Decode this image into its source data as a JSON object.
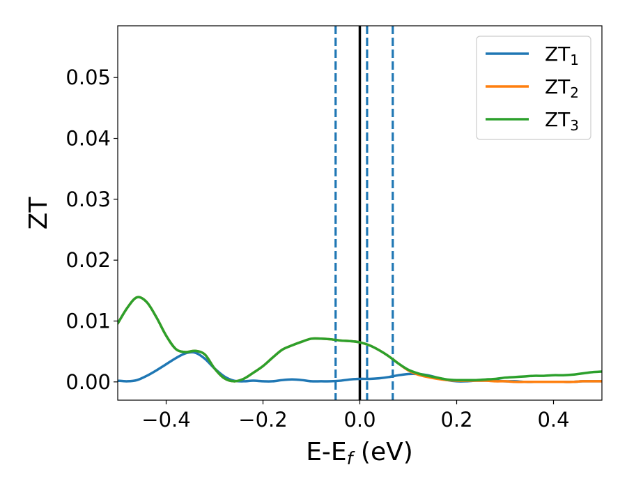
{
  "chart_data": {
    "type": "line",
    "xlabel_main": "E-E",
    "xlabel_sub": "f",
    "xlabel_unit": " (eV)",
    "ylabel": "ZT",
    "xlim": [
      -0.5,
      0.5
    ],
    "ylim": [
      -0.003,
      0.0585
    ],
    "x_ticks": [
      -0.4,
      -0.2,
      0.0,
      0.2,
      0.4
    ],
    "x_tick_labels": [
      "−0.4",
      "−0.2",
      "0.0",
      "0.2",
      "0.4"
    ],
    "y_ticks": [
      0.0,
      0.01,
      0.02,
      0.03,
      0.04,
      0.05
    ],
    "y_tick_labels": [
      "0.00",
      "0.01",
      "0.02",
      "0.03",
      "0.04",
      "0.05"
    ],
    "grid": false,
    "legend_position": "top-right",
    "vertical_lines": [
      {
        "x": 0.0,
        "style": "solid",
        "color": "#000000"
      },
      {
        "x": -0.05,
        "style": "dashed",
        "color": "#1f77b4"
      },
      {
        "x": 0.015,
        "style": "dashed",
        "color": "#1f77b4"
      },
      {
        "x": 0.068,
        "style": "dashed",
        "color": "#1f77b4"
      }
    ],
    "series": [
      {
        "name_main": "ZT",
        "name_sub": "1",
        "color": "#1f77b4",
        "x": [
          -0.5,
          -0.48,
          -0.46,
          -0.44,
          -0.42,
          -0.4,
          -0.38,
          -0.36,
          -0.34,
          -0.32,
          -0.3,
          -0.28,
          -0.26,
          -0.24,
          -0.22,
          -0.2,
          -0.18,
          -0.16,
          -0.14,
          -0.12,
          -0.1,
          -0.08,
          -0.06,
          -0.04,
          -0.02,
          0.0,
          0.02,
          0.04,
          0.06,
          0.08,
          0.1,
          0.12,
          0.14,
          0.16,
          0.18,
          0.2,
          0.22,
          0.24,
          0.26,
          0.28,
          0.3,
          0.32,
          0.34,
          0.36,
          0.38,
          0.4,
          0.42,
          0.44,
          0.46,
          0.48,
          0.5
        ],
        "y": [
          0.0002,
          0.0001,
          0.0003,
          0.001,
          0.0019,
          0.0029,
          0.0039,
          0.0047,
          0.0048,
          0.0038,
          0.0022,
          0.0009,
          0.0002,
          0.0001,
          0.0002,
          0.0001,
          0.0001,
          0.0003,
          0.0004,
          0.0003,
          0.0001,
          0.0001,
          0.0001,
          0.0002,
          0.0004,
          0.0005,
          0.0005,
          0.0006,
          0.0008,
          0.0011,
          0.0013,
          0.0013,
          0.0011,
          0.0007,
          0.0003,
          0.0001,
          0.0001,
          0.0002,
          0.0002,
          0.0002,
          0.0001,
          0.0001,
          0.0,
          0.0,
          0.0,
          0.0,
          0.0,
          0.0,
          0.0001,
          0.0001,
          0.0001
        ]
      },
      {
        "name_main": "ZT",
        "name_sub": "2",
        "color": "#ff7f0e",
        "x": [
          -0.5,
          -0.48,
          -0.46,
          -0.44,
          -0.42,
          -0.4,
          -0.38,
          -0.36,
          -0.34,
          -0.32,
          -0.3,
          -0.28,
          -0.26,
          -0.24,
          -0.22,
          -0.2,
          -0.18,
          -0.16,
          -0.14,
          -0.12,
          -0.1,
          -0.08,
          -0.06,
          -0.04,
          -0.02,
          0.0,
          0.02,
          0.04,
          0.06,
          0.08,
          0.1,
          0.12,
          0.14,
          0.16,
          0.18,
          0.2,
          0.22,
          0.24,
          0.26,
          0.28,
          0.3,
          0.32,
          0.34,
          0.36,
          0.38,
          0.4,
          0.42,
          0.44,
          0.46,
          0.48,
          0.5
        ],
        "y": [
          0.0096,
          0.0122,
          0.0139,
          0.0131,
          0.0106,
          0.0076,
          0.0054,
          0.0049,
          0.0051,
          0.0045,
          0.0022,
          0.0006,
          0.0001,
          0.0005,
          0.0015,
          0.0026,
          0.004,
          0.0053,
          0.006,
          0.0066,
          0.0071,
          0.0071,
          0.007,
          0.0068,
          0.0067,
          0.0065,
          0.006,
          0.0052,
          0.0042,
          0.003,
          0.0019,
          0.0012,
          0.0008,
          0.0005,
          0.0003,
          0.0002,
          0.0002,
          0.0002,
          0.0002,
          0.0001,
          0.0001,
          0.0,
          0.0,
          0.0,
          0.0,
          0.0,
          0.0,
          0.0,
          0.0001,
          0.0001,
          0.0001
        ]
      },
      {
        "name_main": "ZT",
        "name_sub": "3",
        "color": "#2ca02c",
        "x": [
          -0.5,
          -0.48,
          -0.46,
          -0.44,
          -0.42,
          -0.4,
          -0.38,
          -0.36,
          -0.34,
          -0.32,
          -0.3,
          -0.28,
          -0.26,
          -0.24,
          -0.22,
          -0.2,
          -0.18,
          -0.16,
          -0.14,
          -0.12,
          -0.1,
          -0.08,
          -0.06,
          -0.04,
          -0.02,
          0.0,
          0.02,
          0.04,
          0.06,
          0.08,
          0.1,
          0.12,
          0.14,
          0.16,
          0.18,
          0.2,
          0.22,
          0.24,
          0.26,
          0.28,
          0.3,
          0.32,
          0.34,
          0.36,
          0.38,
          0.4,
          0.42,
          0.44,
          0.46,
          0.48,
          0.5
        ],
        "y": [
          0.0096,
          0.0122,
          0.0139,
          0.0131,
          0.0106,
          0.0076,
          0.0054,
          0.0049,
          0.0051,
          0.0045,
          0.0022,
          0.0006,
          0.0001,
          0.0005,
          0.0015,
          0.0026,
          0.004,
          0.0053,
          0.006,
          0.0066,
          0.0071,
          0.0071,
          0.007,
          0.0068,
          0.0067,
          0.0065,
          0.006,
          0.0052,
          0.0042,
          0.003,
          0.002,
          0.0014,
          0.001,
          0.0007,
          0.0004,
          0.0003,
          0.0003,
          0.0003,
          0.0004,
          0.0005,
          0.0007,
          0.0008,
          0.0009,
          0.001,
          0.001,
          0.0011,
          0.0011,
          0.0012,
          0.0014,
          0.0016,
          0.0017
        ]
      }
    ]
  }
}
